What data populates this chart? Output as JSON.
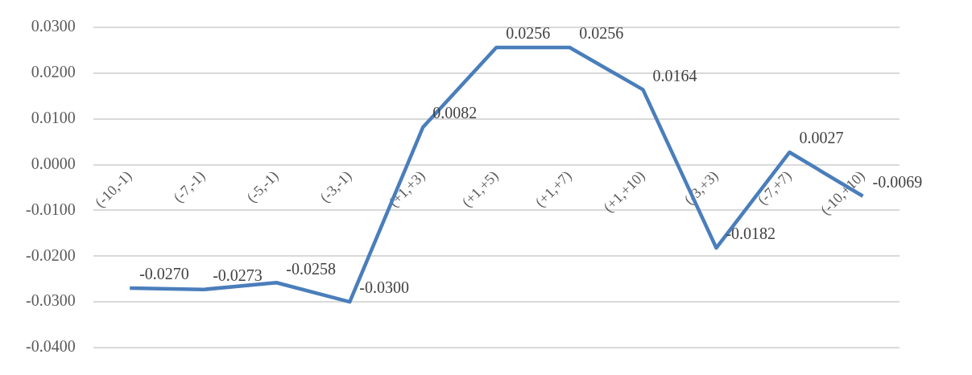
{
  "chart_data": {
    "type": "line",
    "categories": [
      "(-10,-1)",
      "(-7,-1)",
      "(-5,-1)",
      "(-3,-1)",
      "(+1,+3)",
      "(+1,+5)",
      "(+1,+7)",
      "(+1,+10)",
      "(-3,+3)",
      "(-7,+7)",
      "(-10,+10)"
    ],
    "series": [
      {
        "color": "#4a7ebb",
        "values": [
          -0.027,
          -0.0273,
          -0.0258,
          -0.03,
          0.0082,
          0.0256,
          0.0256,
          0.0164,
          -0.0182,
          0.0027,
          -0.0069
        ],
        "value_labels": [
          "-0.0270",
          "-0.0273",
          "-0.0258",
          "-0.0300",
          "0.0082",
          "0.0256",
          "0.0256",
          "0.0164",
          "-0.0182",
          "0.0027",
          "-0.0069"
        ]
      }
    ],
    "ylim": [
      -0.04,
      0.03
    ],
    "yticks": [
      {
        "value": -0.04,
        "label": "-0.0400"
      },
      {
        "value": -0.03,
        "label": "-0.0300"
      },
      {
        "value": -0.02,
        "label": "-0.0200"
      },
      {
        "value": -0.01,
        "label": "-0.0100"
      },
      {
        "value": 0,
        "label": "0.0000"
      },
      {
        "value": 0.01,
        "label": "0.0100"
      },
      {
        "value": 0.02,
        "label": "0.0200"
      },
      {
        "value": 0.03,
        "label": "0.0300"
      }
    ],
    "grid": "y",
    "legend": false,
    "marker": "none",
    "line_style": "solid"
  }
}
